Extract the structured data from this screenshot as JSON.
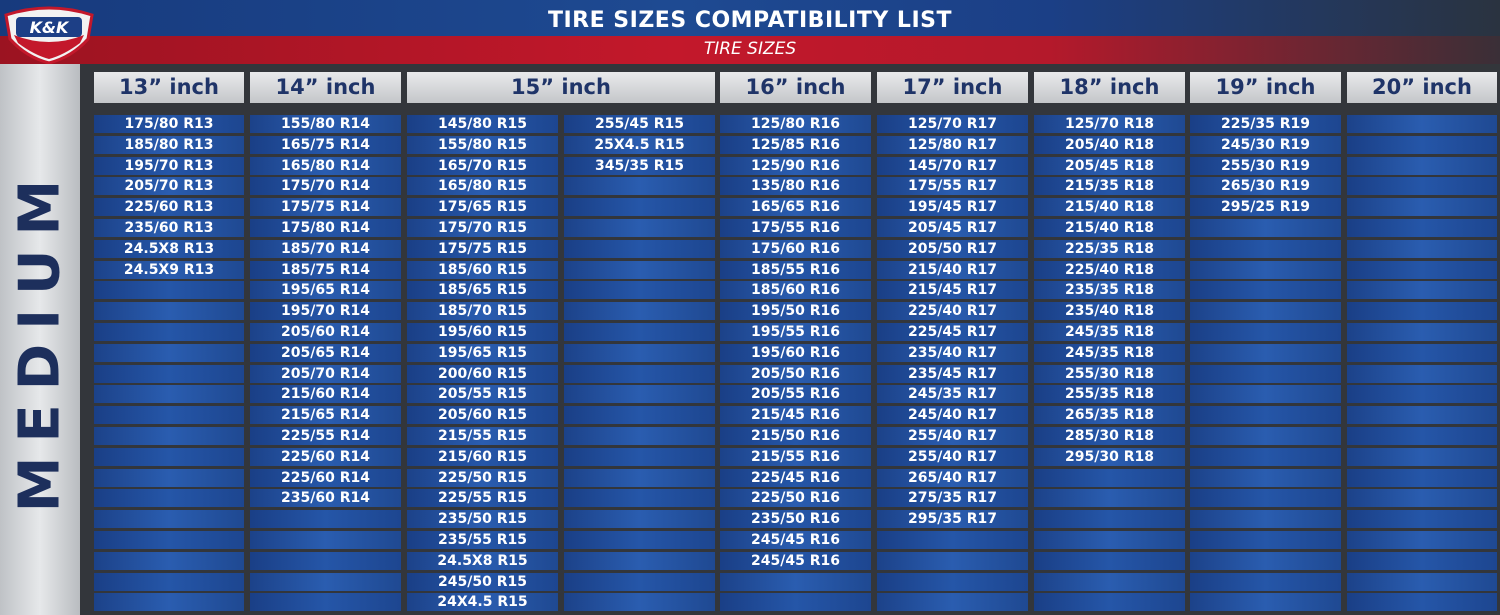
{
  "header": {
    "title": "TIRE SIZES COMPATIBILITY LIST",
    "subtitle": "TIRE SIZES",
    "logo_text": "K&K"
  },
  "side_label": "MEDIUM",
  "colors": {
    "banner_blue": "#1e4a92",
    "banner_red": "#c3182b",
    "cell_blue": "#2556a8",
    "header_text": "#1f3468"
  },
  "columns": [
    {
      "label": "13” inch",
      "cells": [
        [
          "175/80 R13",
          "185/80 R13",
          "195/70 R13",
          "205/70 R13",
          "225/60 R13",
          "235/60 R13",
          "24.5X8 R13",
          "24.5X9 R13"
        ]
      ]
    },
    {
      "label": "14” inch",
      "cells": [
        [
          "155/80 R14",
          "165/75 R14",
          "165/80 R14",
          "175/70 R14",
          "175/75 R14",
          "175/80 R14",
          "185/70 R14",
          "185/75 R14",
          "195/65 R14",
          "195/70 R14",
          "205/60 R14",
          "205/65 R14",
          "205/70 R14",
          "215/60 R14",
          "215/65 R14",
          "225/55 R14",
          "225/60 R14",
          "225/60 R14",
          "235/60 R14"
        ]
      ]
    },
    {
      "label": "15” inch",
      "cells": [
        [
          "145/80 R15",
          "155/80 R15",
          "165/70 R15",
          "165/80 R15",
          "175/65 R15",
          "175/70 R15",
          "175/75 R15",
          "185/60 R15",
          "185/65 R15",
          "185/70 R15",
          "195/60 R15",
          "195/65 R15",
          "200/60 R15",
          "205/55 R15",
          "205/60 R15",
          "215/55 R15",
          "215/60 R15",
          "225/50 R15",
          "225/55 R15",
          "235/50 R15",
          "235/55 R15",
          "24.5X8 R15",
          "245/50 R15",
          "24X4.5 R15"
        ],
        [
          "255/45 R15",
          "25X4.5 R15",
          "345/35 R15"
        ]
      ]
    },
    {
      "label": "16” inch",
      "cells": [
        [
          "125/80 R16",
          "125/85 R16",
          "125/90 R16",
          "135/80 R16",
          "165/65 R16",
          "175/55 R16",
          "175/60 R16",
          "185/55 R16",
          "185/60 R16",
          "195/50 R16",
          "195/55 R16",
          "195/60 R16",
          "205/50 R16",
          "205/55 R16",
          "215/45 R16",
          "215/50 R16",
          "215/55 R16",
          "225/45 R16",
          "225/50 R16",
          "235/50 R16",
          "245/45 R16",
          "245/45 R16"
        ]
      ]
    },
    {
      "label": "17” inch",
      "cells": [
        [
          "125/70 R17",
          "125/80 R17",
          "145/70 R17",
          "175/55 R17",
          "195/45 R17",
          "205/45 R17",
          "205/50 R17",
          "215/40 R17",
          "215/45 R17",
          "225/40 R17",
          "225/45 R17",
          "235/40 R17",
          "235/45 R17",
          "245/35 R17",
          "245/40 R17",
          "255/40 R17",
          "255/40 R17",
          "265/40 R17",
          "275/35 R17",
          "295/35 R17"
        ]
      ]
    },
    {
      "label": "18” inch",
      "cells": [
        [
          "125/70 R18",
          "205/40 R18",
          "205/45 R18",
          "215/35 R18",
          "215/40 R18",
          "215/40 R18",
          "225/35 R18",
          "225/40 R18",
          "235/35 R18",
          "235/40 R18",
          "245/35 R18",
          "245/35 R18",
          "255/30 R18",
          "255/35 R18",
          "265/35 R18",
          "285/30 R18",
          "295/30 R18"
        ]
      ]
    },
    {
      "label": "19” inch",
      "cells": [
        [
          "225/35 R19",
          "245/30 R19",
          "255/30 R19",
          "265/30 R19",
          "295/25 R19"
        ]
      ]
    },
    {
      "label": "20” inch",
      "cells": [
        []
      ]
    }
  ]
}
